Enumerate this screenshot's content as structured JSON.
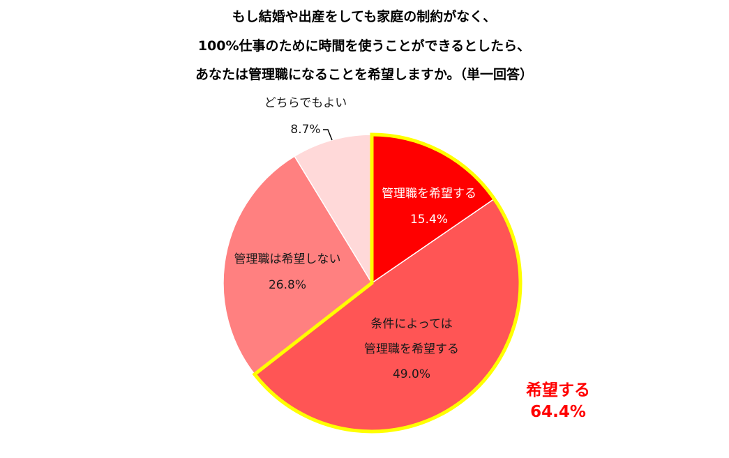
{
  "chart_data": {
    "type": "pie",
    "title_lines": [
      "もし結婚や出産をしても家庭の制約がなく、",
      "100%仕事のために時間を使うことができるとしたら、",
      "あなたは管理職になることを希望しますか。（単一回答）"
    ],
    "slices": [
      {
        "label_lines": [
          "管理職を希望する"
        ],
        "value": 15.4,
        "value_label": "15.4%",
        "color": "#ff0000",
        "text_color": "#ffffff"
      },
      {
        "label_lines": [
          "条件によっては",
          "管理職を希望する"
        ],
        "value": 49.0,
        "value_label": "49.0%",
        "color": "#ff5555",
        "text_color": "#1a1a1a"
      },
      {
        "label_lines": [
          "管理職は希望しない"
        ],
        "value": 26.8,
        "value_label": "26.8%",
        "color": "#ff8080",
        "text_color": "#1a1a1a"
      },
      {
        "label_lines": [
          "どちらでもよい"
        ],
        "value": 8.7,
        "value_label": "8.7%",
        "color": "#ffd9d9",
        "text_color": "#1a1a1a"
      }
    ],
    "highlight": {
      "label": "希望する",
      "value_label": "64.4%",
      "members": [
        0,
        1
      ],
      "outline_color": "#ffff00"
    }
  }
}
